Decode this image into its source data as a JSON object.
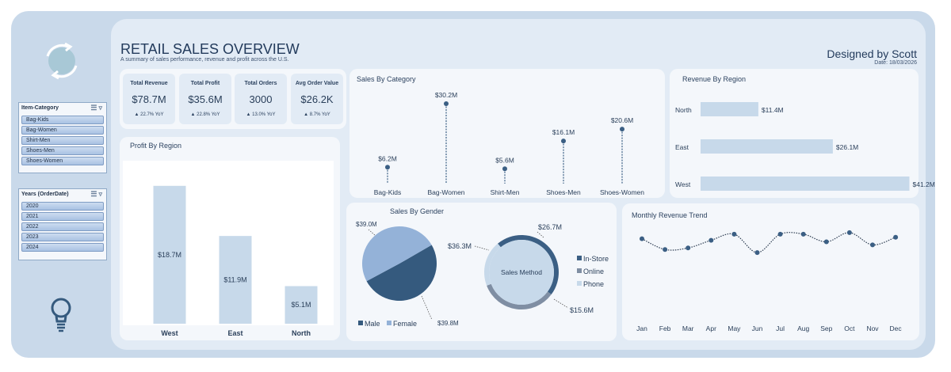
{
  "header": {
    "title": "RETAIL SALES OVERVIEW",
    "subtitle": "A summary of sales performance, revenue and profit across the U.S.",
    "designer": "Designed by Scott",
    "date": "Date: 18/03/2026"
  },
  "slicers": {
    "category": {
      "title": "Item-Category",
      "items": [
        "Bag-Kids",
        "Bag-Women",
        "Shirt-Men",
        "Shoes-Men",
        "Shoes-Women"
      ]
    },
    "years": {
      "title": "Years (OrderDate)",
      "items": [
        "2020",
        "2021",
        "2022",
        "2023",
        "2024"
      ]
    }
  },
  "kpis": [
    {
      "label": "Total Revenue",
      "value": "$78.7M",
      "yoy": "▲ 22.7% YoY"
    },
    {
      "label": "Total Profit",
      "value": "$35.6M",
      "yoy": "▲ 22.8% YoY"
    },
    {
      "label": "Total Orders",
      "value": "3000",
      "yoy": "▲ 13.0% YoY"
    },
    {
      "label": "Avg Order Value",
      "value": "$26.2K",
      "yoy": "▲ 8.7% YoY"
    }
  ],
  "colors": {
    "dark": "#3b5f84",
    "light": "#c7d9ea",
    "mid": "#7f8ea3",
    "female": "#94b2d8",
    "male": "#355a7e"
  },
  "chart_data": [
    {
      "id": "sales-by-category",
      "type": "lollipop",
      "title": "Sales By Category",
      "categories": [
        "Bag-Kids",
        "Bag-Women",
        "Shirt-Men",
        "Shoes-Men",
        "Shoes-Women"
      ],
      "values": [
        6.2,
        30.2,
        5.6,
        16.1,
        20.6
      ],
      "labels": [
        "$6.2M",
        "$30.2M",
        "$5.6M",
        "$16.1M",
        "$20.6M"
      ],
      "ylim": [
        0,
        32
      ]
    },
    {
      "id": "revenue-by-region",
      "type": "bar",
      "orientation": "horizontal",
      "title": "Revenue By Region",
      "categories": [
        "North",
        "East",
        "West"
      ],
      "values": [
        11.4,
        26.1,
        41.2
      ],
      "labels": [
        "$11.4M",
        "$26.1M",
        "$41.2M"
      ],
      "xlim": [
        0,
        43
      ]
    },
    {
      "id": "profit-by-region",
      "type": "bar",
      "title": "Profit By Region",
      "categories": [
        "West",
        "East",
        "North"
      ],
      "values": [
        18.7,
        11.9,
        5.1
      ],
      "labels": [
        "$18.7M",
        "$11.9M",
        "$5.1M"
      ],
      "ylim": [
        0,
        19
      ]
    },
    {
      "id": "sales-by-gender",
      "type": "pie",
      "title": "Sales By Gender",
      "categories": [
        "Male",
        "Female"
      ],
      "values": [
        39.8,
        39.0
      ],
      "labels": [
        "$39.8M",
        "$39.0M"
      ]
    },
    {
      "id": "sales-method",
      "type": "donut",
      "title": "Sales Method",
      "categories": [
        "In-Store",
        "Online",
        "Phone"
      ],
      "values": [
        36.3,
        26.7,
        15.6
      ],
      "labels": [
        "$36.3M",
        "$26.7M",
        "$15.6M"
      ]
    },
    {
      "id": "monthly-revenue-trend",
      "type": "line",
      "title": "Monthly Revenue Trend",
      "categories": [
        "Jan",
        "Feb",
        "Mar",
        "Apr",
        "May",
        "Jun",
        "Jul",
        "Aug",
        "Sep",
        "Oct",
        "Nov",
        "Dec"
      ],
      "values": [
        6.9,
        6.2,
        6.3,
        6.8,
        7.2,
        6.0,
        7.2,
        7.2,
        6.7,
        7.3,
        6.5,
        7.0
      ],
      "ylim": [
        5.8,
        7.5
      ]
    }
  ]
}
